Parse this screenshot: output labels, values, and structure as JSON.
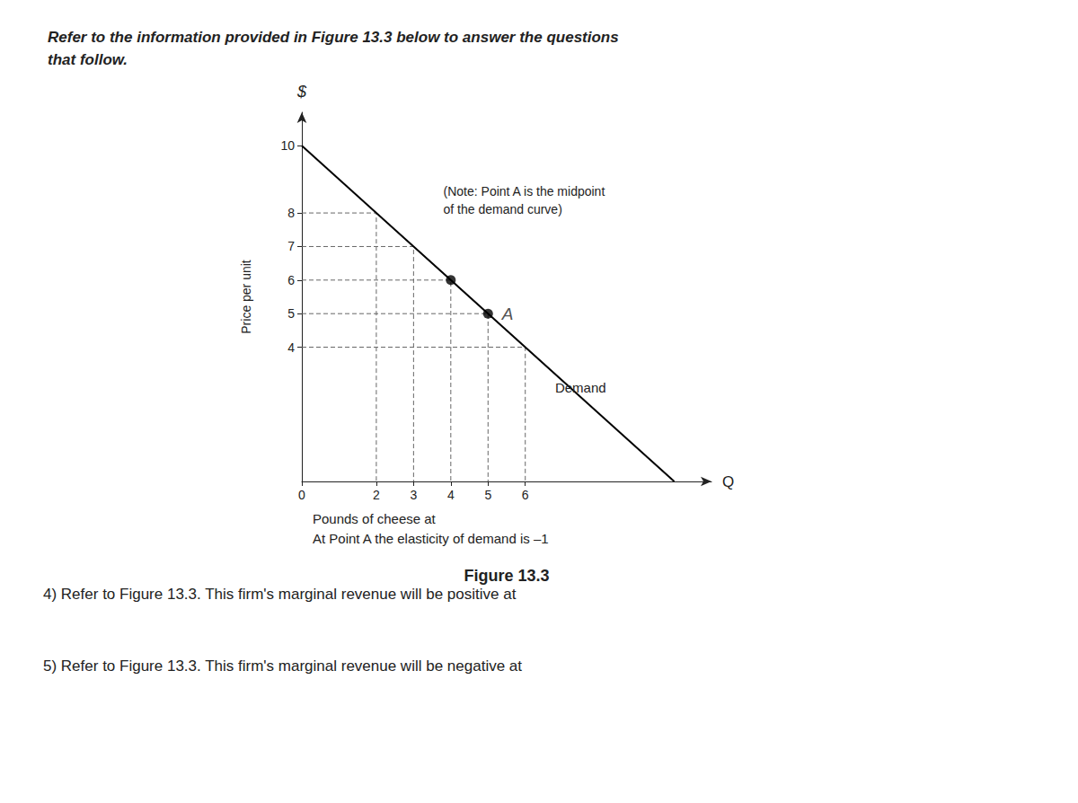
{
  "chart_data": {
    "type": "line",
    "title": "Refer to the information provided in Figure 13.3 below to answer the questions\nthat follow.",
    "xlabel": "Pounds of cheese at",
    "ylabel": "Price per unit",
    "x_symbol": "Q",
    "y_symbol": "$",
    "subtitle": "At Point A the elasticity of demand is –1",
    "figure_label": "Figure 13.3",
    "questions": [
      "4) Refer to Figure 13.3. This firm's marginal revenue will be positive at",
      "5) Refer to Figure 13.3. This firm's marginal revenue will be negative at"
    ],
    "series": [
      {
        "type": "line",
        "x": [
          0,
          10
        ],
        "values": [
          10,
          0
        ],
        "color": "#000000"
      },
      {
        "type": "scatter",
        "x": [
          5,
          4
        ],
        "values": [
          5,
          6
        ],
        "labels": [
          "A",
          null
        ],
        "color": "#000000"
      },
      {
        "type": "guides",
        "pairs": [
          [
            2,
            8
          ],
          [
            3,
            7
          ],
          [
            4,
            6
          ],
          [
            5,
            5
          ],
          [
            6,
            4
          ]
        ],
        "color": "#666666",
        "line_style": "dashed"
      }
    ],
    "annotations": [
      {
        "text": "Demand",
        "x": 6.8,
        "y": 2.8
      },
      {
        "text": "(Note: Point A is the midpoint\nof the demand curve)",
        "x": 3.8,
        "y": 8.9
      }
    ],
    "xlim": [
      0,
      11
    ],
    "ylim": [
      0,
      11
    ],
    "xticks": [
      0,
      2,
      3,
      4,
      5,
      6
    ],
    "yticks": [
      4,
      5,
      6,
      7,
      8,
      10
    ],
    "grid": false
  }
}
